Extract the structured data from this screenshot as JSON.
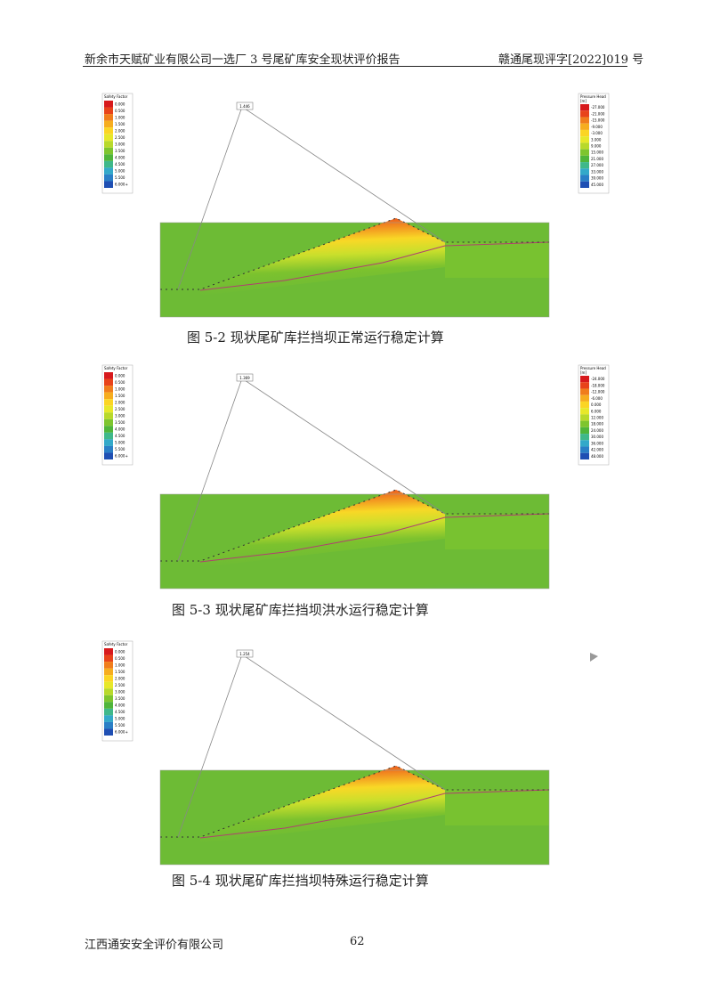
{
  "header": {
    "left": "新余市天赋矿业有限公司一选厂 3 号尾矿库安全现状评价报告",
    "right": "赣通尾现评字[2022]019 号"
  },
  "figures": [
    {
      "caption": "图 5-2    现状尾矿库拦挡坝正常运行稳定计算",
      "slip_label": "1.446",
      "safety_legend": {
        "title": "Safety Factor",
        "labels": [
          "0.000",
          "0.500",
          "1.000",
          "1.500",
          "2.000",
          "2.500",
          "3.000",
          "3.500",
          "4.000",
          "4.500",
          "5.000",
          "5.500",
          "6.000+"
        ]
      },
      "pressure_legend": {
        "title": "Pressure Head",
        "unit": "[m]",
        "labels": [
          "-27.000",
          "-21.000",
          "-15.000",
          "-9.000",
          "-3.000",
          "3.000",
          "9.000",
          "15.000",
          "21.000",
          "27.000",
          "33.000",
          "39.000",
          "45.000"
        ]
      }
    },
    {
      "caption": "图 5-3    现状尾矿库拦挡坝洪水运行稳定计算",
      "slip_label": "1.369",
      "safety_legend": {
        "title": "Safety Factor",
        "labels": [
          "0.000",
          "0.500",
          "1.000",
          "1.500",
          "2.000",
          "2.500",
          "3.000",
          "3.500",
          "4.000",
          "4.500",
          "5.000",
          "5.500",
          "6.000+"
        ]
      },
      "pressure_legend": {
        "title": "Pressure Head",
        "unit": "[m]",
        "labels": [
          "-24.000",
          "-18.000",
          "-12.000",
          "-6.000",
          "0.000",
          "6.000",
          "12.000",
          "18.000",
          "24.000",
          "30.000",
          "36.000",
          "42.000",
          "48.000"
        ]
      }
    },
    {
      "caption": "图 5-4    现状尾矿库拦挡坝特殊运行稳定计算",
      "slip_label": "1.254",
      "safety_legend": {
        "title": "Safety Factor",
        "labels": [
          "0.000",
          "0.500",
          "1.000",
          "1.500",
          "2.000",
          "2.500",
          "3.000",
          "3.500",
          "4.000",
          "4.500",
          "5.000",
          "5.500",
          "6.000+"
        ]
      },
      "pressure_legend": null
    }
  ],
  "footer": {
    "company": "江西通安安全评价有限公司",
    "page": "62"
  }
}
